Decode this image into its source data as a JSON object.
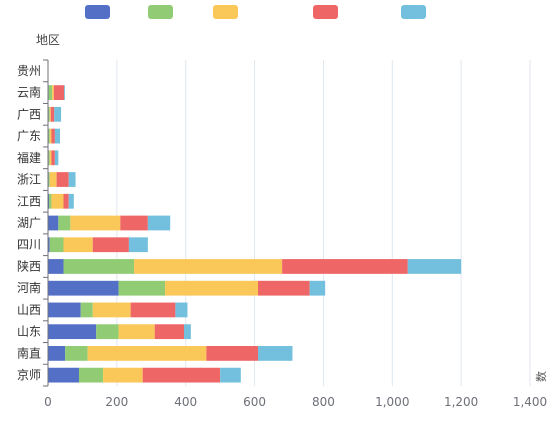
{
  "chart_data": {
    "type": "bar",
    "orientation": "horizontal",
    "stacked": true,
    "ylabel": "地区",
    "xlabel": "",
    "x_axis_partial_label": "数",
    "xlim": [
      0,
      1400
    ],
    "x_ticks": [
      "0",
      "200",
      "400",
      "600",
      "800",
      "1,000",
      "1,200",
      "1,400"
    ],
    "grid": true,
    "legend_position": "top",
    "categories": [
      "京师",
      "南直",
      "山东",
      "山西",
      "河南",
      "陕西",
      "四川",
      "湖广",
      "江西",
      "浙江",
      "福建",
      "广东",
      "广西",
      "云南",
      "贵州"
    ],
    "series": [
      {
        "color": "#5470c6",
        "values": [
          90,
          50,
          140,
          95,
          205,
          45,
          5,
          30,
          3,
          2,
          2,
          2,
          2,
          2,
          0
        ]
      },
      {
        "color": "#91cc75",
        "values": [
          70,
          65,
          65,
          35,
          135,
          205,
          40,
          35,
          7,
          3,
          3,
          3,
          3,
          10,
          0
        ]
      },
      {
        "color": "#fac858",
        "values": [
          115,
          345,
          105,
          110,
          270,
          430,
          85,
          145,
          35,
          20,
          5,
          5,
          3,
          5,
          0
        ]
      },
      {
        "color": "#ee6666",
        "values": [
          225,
          150,
          85,
          130,
          150,
          365,
          105,
          80,
          15,
          35,
          10,
          10,
          10,
          30,
          0
        ]
      },
      {
        "color": "#73c0de",
        "values": [
          60,
          100,
          20,
          35,
          45,
          155,
          55,
          65,
          15,
          20,
          10,
          15,
          20,
          2,
          0
        ]
      }
    ]
  }
}
